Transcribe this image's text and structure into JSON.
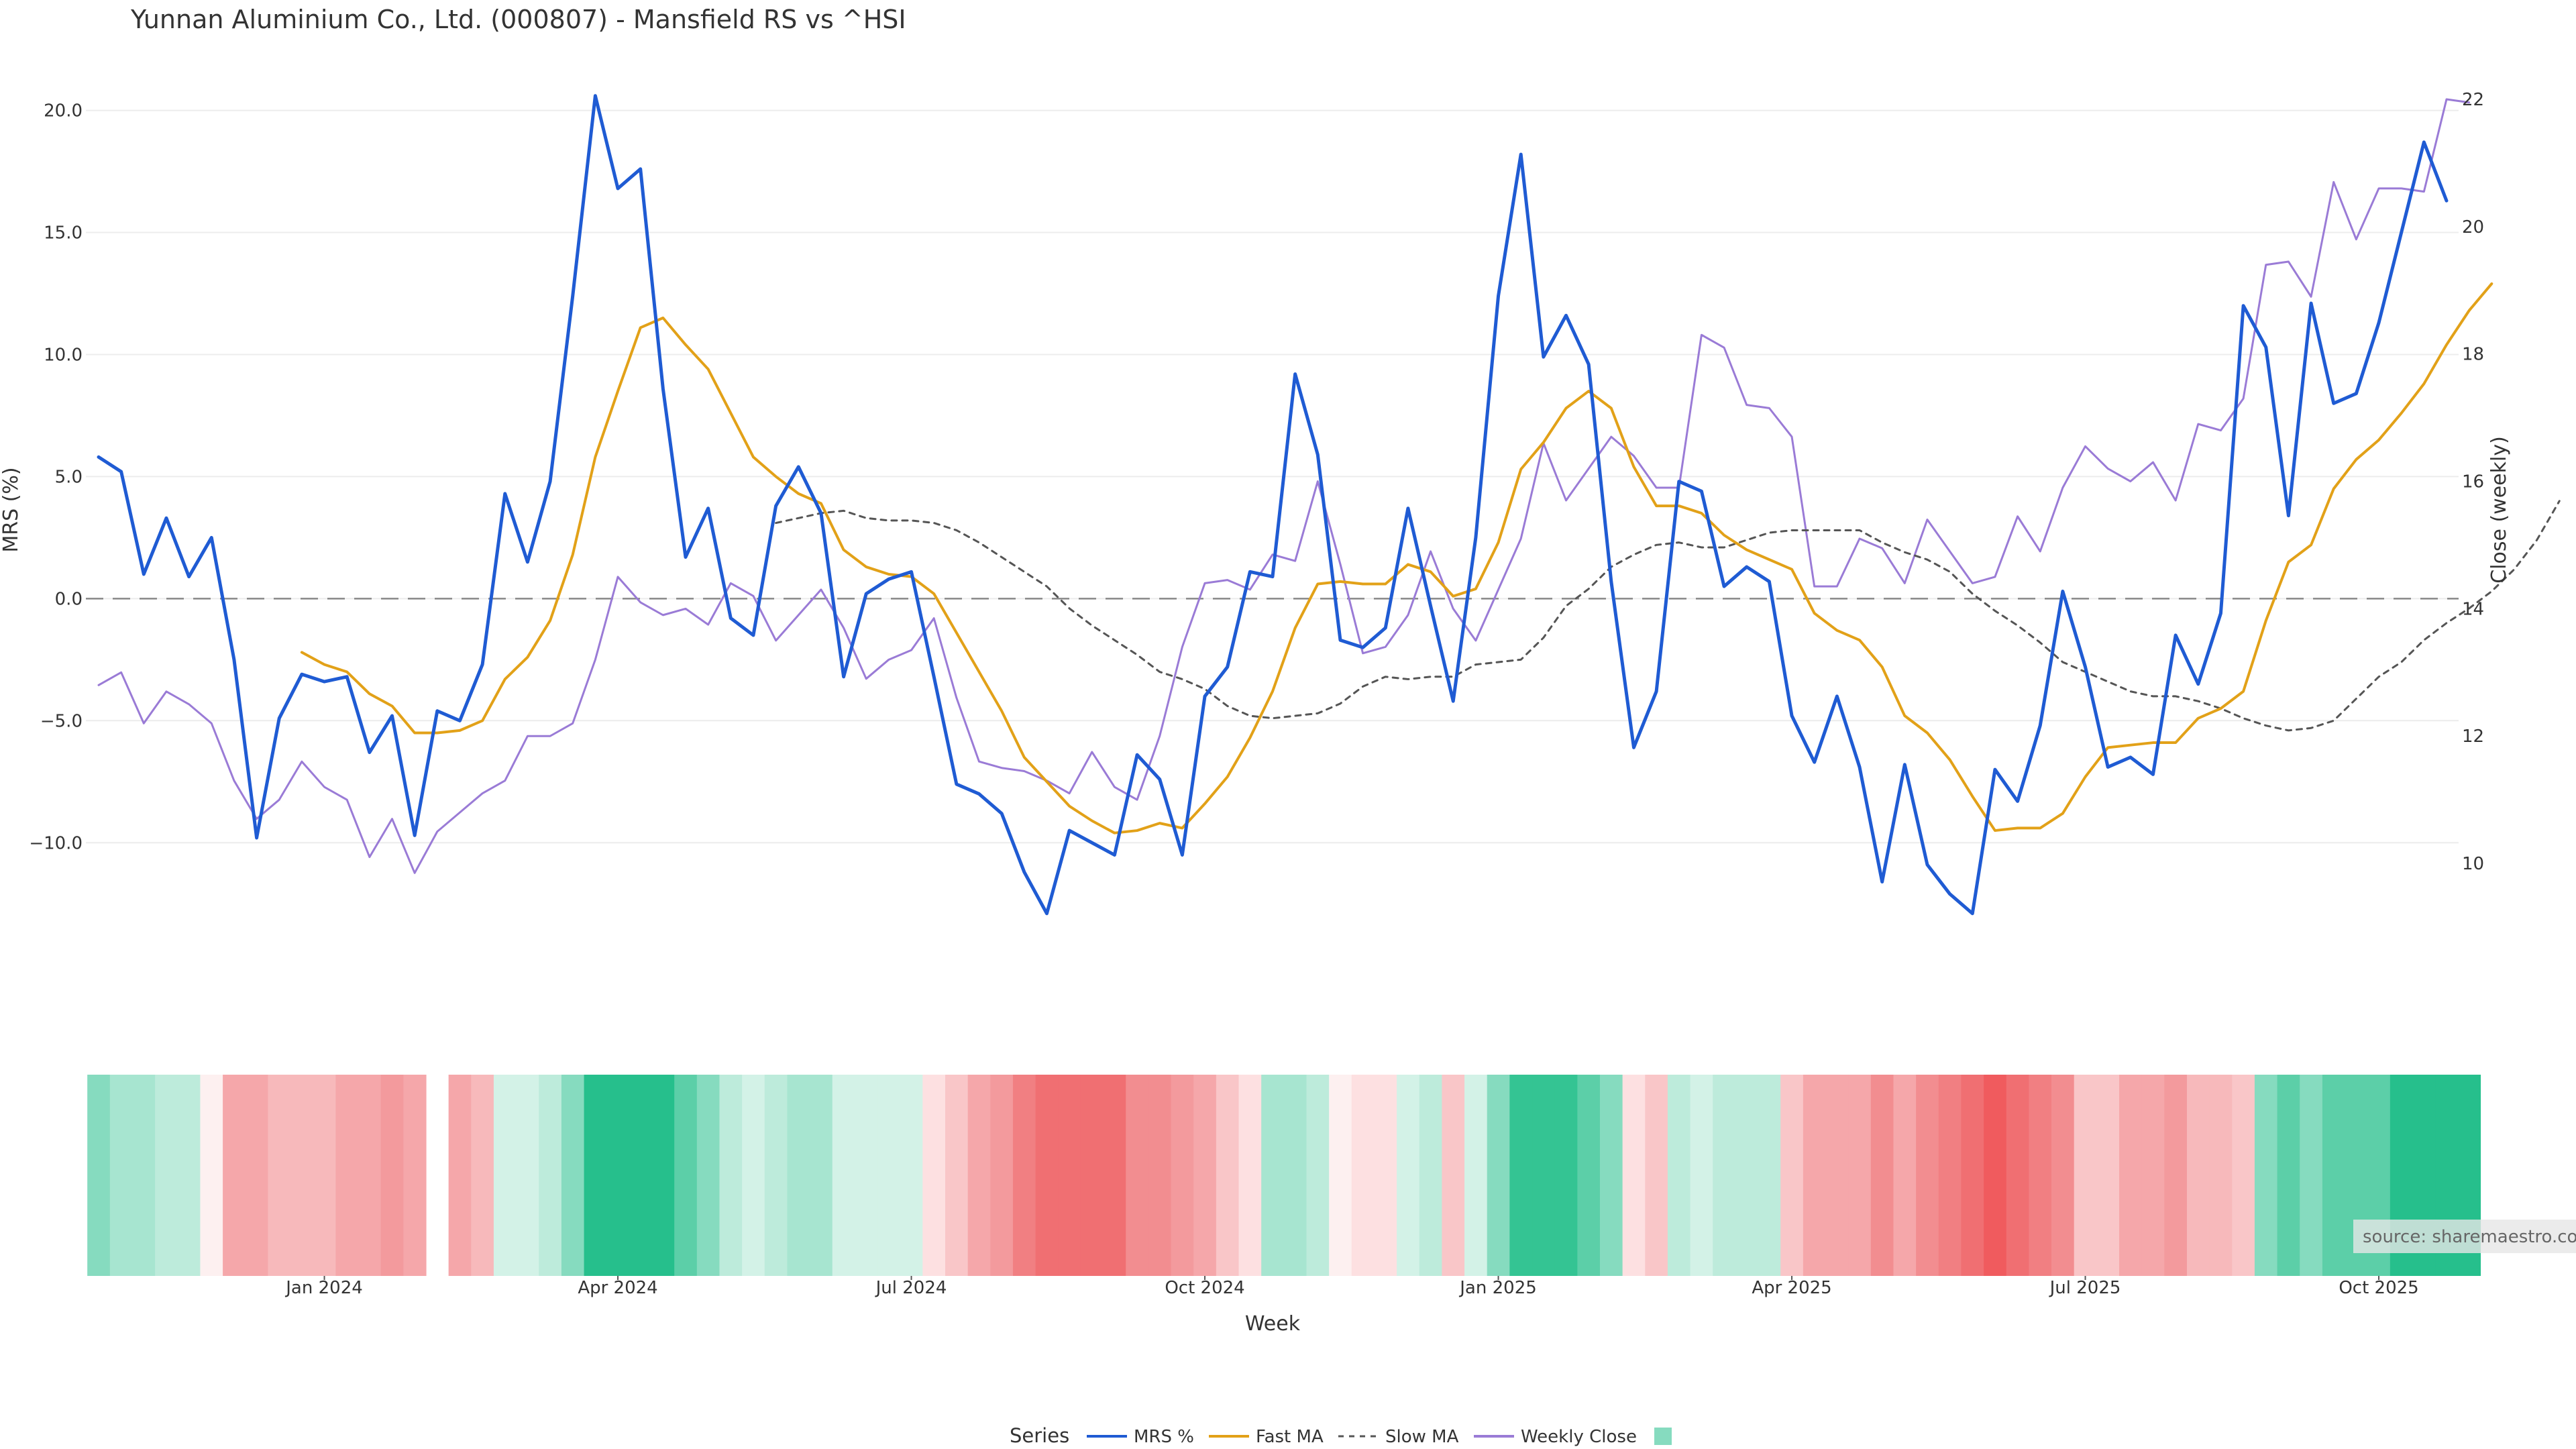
{
  "chart_data": {
    "type": "line",
    "title": "Yunnan Aluminium Co., Ltd. (000807) - Mansfield RS vs ^HSI",
    "ylabel": "MRS (%)",
    "y2label": "Close (weekly)",
    "xlabel": "Week",
    "ylim": [
      -14.5,
      21.5
    ],
    "yticks": [
      20.0,
      15.0,
      10.0,
      5.0,
      0.0,
      -5.0,
      -10.0
    ],
    "ytick_labels": [
      "20.0",
      "15.0",
      "10.0",
      "5.0",
      "0.0",
      "−5.0",
      "−10.0"
    ],
    "y2lim": [
      8.6,
      22.4
    ],
    "y2ticks": [
      10,
      12,
      14,
      16,
      18,
      20,
      22
    ],
    "xticks": [
      {
        "week": 10,
        "label": "Jan 2024"
      },
      {
        "week": 23,
        "label": "Apr 2024"
      },
      {
        "week": 36,
        "label": "Jul 2024"
      },
      {
        "week": 49,
        "label": "Oct 2024"
      },
      {
        "week": 62,
        "label": "Jan 2025"
      },
      {
        "week": 75,
        "label": "Apr 2025"
      },
      {
        "week": 88,
        "label": "Jul 2025"
      },
      {
        "week": 101,
        "label": "Oct 2025"
      }
    ],
    "grid": true,
    "zero_line": true,
    "gap_after_week": 15,
    "series": [
      {
        "name": "MRS %",
        "color": "#1f5bd3",
        "axis": "left",
        "style": "solid",
        "start": 0,
        "values": [
          5.8,
          5.2,
          1.0,
          3.3,
          0.9,
          2.5,
          -2.5,
          -9.8,
          -4.9,
          -3.1,
          -3.4,
          -3.2,
          -6.3,
          -4.8,
          -9.7,
          -4.6,
          -5.0,
          -2.7,
          4.3,
          1.5,
          4.8,
          12.4,
          20.6,
          16.8,
          17.6,
          8.6,
          1.7,
          3.7,
          -0.8,
          -1.5,
          3.8,
          5.4,
          3.5,
          -3.2,
          0.2,
          0.8,
          1.1,
          -3.2,
          -7.6,
          -8.0,
          -8.8,
          -11.2,
          -12.9,
          -9.5,
          -10.0,
          -10.5,
          -6.4,
          -7.4,
          -10.5,
          -4.0,
          -2.8,
          1.1,
          0.9,
          9.2,
          5.9,
          -1.7,
          -2.0,
          -1.2,
          3.7,
          -0.3,
          -4.2,
          2.5,
          12.4,
          18.2,
          9.9,
          11.6,
          9.6,
          0.7,
          -6.1,
          -3.8,
          4.8,
          4.4,
          0.5,
          1.3,
          0.7,
          -4.8,
          -6.7,
          -4.0,
          -6.9,
          -11.6,
          -6.8,
          -10.9,
          -12.1,
          -12.9,
          -7.0,
          -8.3,
          -5.2,
          0.3,
          -2.8,
          -6.9,
          -6.5,
          -7.2,
          -1.5,
          -3.5,
          -0.6,
          12.0,
          10.3,
          3.4,
          12.1,
          8.0,
          8.4,
          11.3,
          15.0,
          18.7,
          16.3
        ]
      },
      {
        "name": "Fast MA",
        "color": "#e2a118",
        "axis": "left",
        "style": "solid",
        "start": 9,
        "values": [
          -2.2,
          -2.7,
          -3.0,
          -3.9,
          -4.4,
          -5.5,
          -5.5,
          -5.4,
          -5.0,
          -3.3,
          -2.4,
          -0.9,
          1.8,
          5.8,
          8.5,
          11.1,
          11.5,
          10.4,
          9.4,
          7.6,
          5.8,
          5.0,
          4.3,
          3.9,
          2.0,
          1.3,
          1.0,
          0.9,
          0.2,
          -1.4,
          -3.0,
          -4.6,
          -6.5,
          -7.5,
          -8.5,
          -9.1,
          -9.6,
          -9.5,
          -9.2,
          -9.4,
          -8.4,
          -7.3,
          -5.7,
          -3.8,
          -1.2,
          0.6,
          0.7,
          0.6,
          0.6,
          1.4,
          1.1,
          0.1,
          0.4,
          2.3,
          5.3,
          6.4,
          7.8,
          8.5,
          7.8,
          5.4,
          3.8,
          3.8,
          3.5,
          2.6,
          2.0,
          1.6,
          1.2,
          -0.6,
          -1.3,
          -1.7,
          -2.8,
          -4.8,
          -5.5,
          -6.6,
          -8.1,
          -9.5,
          -9.4,
          -9.4,
          -8.8,
          -7.3,
          -6.1,
          -6.0,
          -5.9,
          -5.9,
          -4.9,
          -4.5,
          -3.8,
          -0.9,
          1.5,
          2.2,
          4.5,
          5.7,
          6.5,
          7.6,
          8.8,
          10.4,
          11.8,
          12.9
        ]
      },
      {
        "name": "Slow MA",
        "color": "#555555",
        "axis": "left",
        "style": "dashed",
        "start": 30,
        "values": [
          3.1,
          3.3,
          3.5,
          3.6,
          3.3,
          3.2,
          3.2,
          3.1,
          2.8,
          2.3,
          1.7,
          1.1,
          0.5,
          -0.4,
          -1.1,
          -1.7,
          -2.3,
          -3.0,
          -3.3,
          -3.7,
          -4.4,
          -4.8,
          -4.9,
          -4.8,
          -4.7,
          -4.3,
          -3.6,
          -3.2,
          -3.3,
          -3.2,
          -3.2,
          -2.7,
          -2.6,
          -2.5,
          -1.6,
          -0.3,
          0.4,
          1.3,
          1.8,
          2.2,
          2.3,
          2.1,
          2.1,
          2.4,
          2.7,
          2.8,
          2.8,
          2.8,
          2.8,
          2.3,
          1.9,
          1.6,
          1.1,
          0.2,
          -0.5,
          -1.1,
          -1.8,
          -2.6,
          -3.0,
          -3.4,
          -3.8,
          -4.0,
          -4.0,
          -4.2,
          -4.5,
          -4.9,
          -5.2,
          -5.4,
          -5.3,
          -5.0,
          -4.1,
          -3.2,
          -2.6,
          -1.7,
          -1.0,
          -0.4,
          0.3,
          1.2,
          2.4,
          4.0
        ]
      },
      {
        "name": "Weekly Close",
        "color": "#9a7bd6",
        "axis": "right",
        "style": "solid",
        "start": 0,
        "values": [
          12.8,
          13.0,
          12.2,
          12.7,
          12.5,
          12.2,
          11.3,
          10.7,
          11.0,
          11.6,
          11.2,
          11.0,
          10.1,
          10.7,
          9.85,
          10.5,
          10.8,
          11.1,
          11.3,
          12.0,
          12.0,
          12.2,
          13.2,
          14.5,
          14.1,
          13.9,
          14.0,
          13.75,
          14.4,
          14.2,
          13.5,
          13.9,
          14.3,
          13.7,
          12.9,
          13.2,
          13.35,
          13.85,
          12.6,
          11.6,
          11.5,
          11.45,
          11.3,
          11.1,
          11.75,
          11.2,
          11.0,
          12.0,
          13.4,
          14.4,
          14.45,
          14.3,
          14.85,
          14.75,
          16.0,
          14.7,
          13.3,
          13.4,
          13.9,
          14.9,
          14.0,
          13.5,
          14.3,
          15.1,
          16.6,
          15.7,
          16.2,
          16.7,
          16.4,
          15.9,
          15.9,
          18.3,
          18.1,
          17.2,
          17.15,
          16.7,
          14.35,
          14.35,
          15.1,
          14.95,
          14.4,
          15.4,
          14.9,
          14.4,
          14.5,
          15.45,
          14.9,
          15.9,
          16.55,
          16.2,
          16.0,
          16.3,
          15.7,
          16.9,
          16.8,
          17.3,
          19.4,
          19.45,
          18.9,
          20.7,
          19.8,
          20.6,
          20.6,
          20.55,
          22.0,
          21.95
        ]
      }
    ],
    "heatmap_colors": [
      "#86dbbf",
      "#a7e5d0",
      "#a7e5d0",
      "#bdebdb",
      "#bdebdb",
      "#fdf0f0",
      "#f5a7aa",
      "#f5a7aa",
      "#f7b9bb",
      "#f7b9bb",
      "#f7b9bb",
      "#f5a7aa",
      "#f5a7aa",
      "#f39a9d",
      "#f5a7aa",
      null,
      "#f5a7aa",
      "#f7b9bb",
      "#d3f2e7",
      "#d3f2e7",
      "#bdebdb",
      "#86dbbf",
      "#26bf8c",
      "#26bf8c",
      "#26bf8c",
      "#26bf8c",
      "#5ccfa8",
      "#86dbbf",
      "#bdebdb",
      "#d3f2e7",
      "#bdebdb",
      "#a7e5d0",
      "#a7e5d0",
      "#d3f2e7",
      "#d3f2e7",
      "#d3f2e7",
      "#d3f2e7",
      "#fde0e1",
      "#f9c6c8",
      "#f5a7aa",
      "#f39a9d",
      "#f17f82",
      "#f06f72",
      "#f06f72",
      "#f06f72",
      "#f06f72",
      "#f28d90",
      "#f28d90",
      "#f39a9d",
      "#f5a7aa",
      "#f9c6c8",
      "#fde0e1",
      "#a7e5d0",
      "#a7e5d0",
      "#bdebdb",
      "#fdf0f0",
      "#fde0e1",
      "#fde0e1",
      "#d3f2e7",
      "#bdebdb",
      "#f9c6c8",
      "#d3f2e7",
      "#86dbbf",
      "#34c493",
      "#34c493",
      "#34c493",
      "#5ccfa8",
      "#86dbbf",
      "#fde0e1",
      "#f9c6c8",
      "#bdebdb",
      "#d3f2e7",
      "#bdebdb",
      "#bdebdb",
      "#bdebdb",
      "#f9c6c8",
      "#f5a7aa",
      "#f5a7aa",
      "#f5a7aa",
      "#f28d90",
      "#f5a7aa",
      "#f28d90",
      "#f17f82",
      "#f06f72",
      "#f05b5e",
      "#f06f72",
      "#f17f82",
      "#f28d90",
      "#f9c6c8",
      "#f9c6c8",
      "#f5a7aa",
      "#f5a7aa",
      "#f39a9d",
      "#f7b9bb",
      "#f7b9bb",
      "#f9c6c8",
      "#86dbbf",
      "#5ccfa8",
      "#86dbbf",
      "#5ccfa8",
      "#5ccfa8",
      "#5ccfa8",
      "#26bf8c",
      "#26bf8c",
      "#26bf8c",
      "#26bf8c"
    ],
    "legend": {
      "title": "Series",
      "position": "bottom-center",
      "items": [
        {
          "label": "MRS %",
          "color": "#1f5bd3",
          "style": "solid"
        },
        {
          "label": "Fast MA",
          "color": "#e2a118",
          "style": "solid"
        },
        {
          "label": "Slow MA",
          "color": "#555555",
          "style": "dashed"
        },
        {
          "label": "Weekly Close",
          "color": "#9a7bd6",
          "style": "solid"
        },
        {
          "label": "",
          "color": "#86dbbf",
          "style": "swatch"
        }
      ]
    },
    "source": "source: sharemaestro.com"
  }
}
